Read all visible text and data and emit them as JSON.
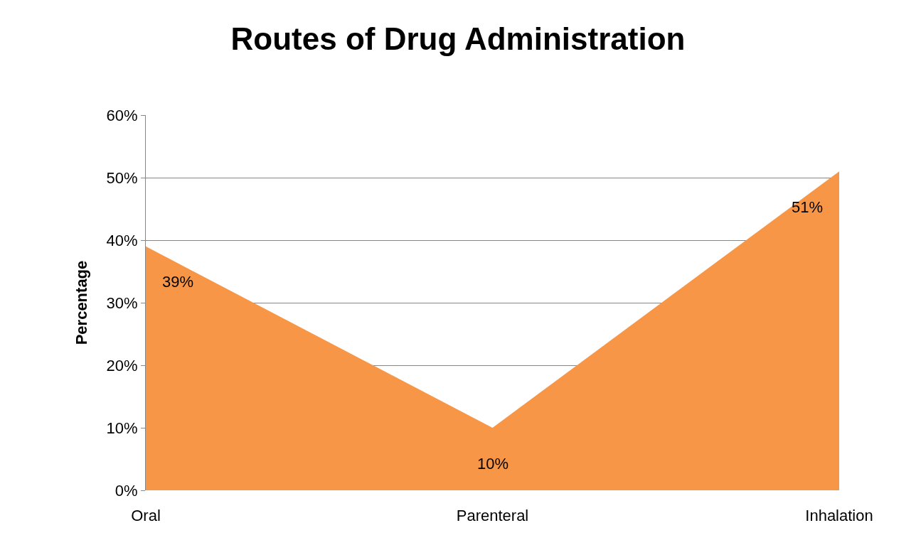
{
  "chart_data": {
    "type": "area",
    "title": "Routes of Drug Administration",
    "ylabel": "Percentage",
    "categories": [
      "Oral",
      "Parenteral",
      "Inhalation"
    ],
    "series": [
      {
        "color": "#f79646",
        "values": [
          39,
          10,
          51
        ],
        "value_labels": [
          "39%",
          "10%",
          "51%"
        ]
      }
    ],
    "ylim": [
      0,
      60
    ],
    "yticks": [
      {
        "value": 0,
        "label": "0%"
      },
      {
        "value": 10,
        "label": "10%"
      },
      {
        "value": 20,
        "label": "20%"
      },
      {
        "value": 30,
        "label": "30%"
      },
      {
        "value": 40,
        "label": "40%"
      },
      {
        "value": 50,
        "label": "50%"
      },
      {
        "value": 60,
        "label": "60%"
      }
    ],
    "grid": "y",
    "legend": false
  }
}
